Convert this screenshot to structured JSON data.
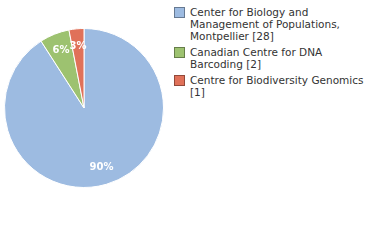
{
  "chart_data": {
    "type": "pie",
    "categories": [
      "Center for Biology and Management of Populations, Montpellier [28]",
      "Canadian Centre for DNA Barcoding [2]",
      "Centre for Biodiversity Genomics [1]"
    ],
    "values": [
      90,
      6,
      3
    ],
    "value_labels": [
      "90%",
      "6%",
      "3%"
    ],
    "colors": [
      "#9dbbe1",
      "#9dc270",
      "#e07159"
    ],
    "data_labels": true,
    "legend": "right"
  }
}
